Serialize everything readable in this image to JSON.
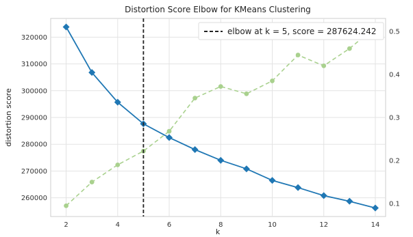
{
  "chart_data": {
    "type": "line",
    "title": "Distortion Score Elbow for KMeans Clustering",
    "xlabel": "k",
    "ylabel": "distortion score",
    "y2label": "",
    "x": [
      2,
      3,
      4,
      5,
      6,
      7,
      8,
      9,
      10,
      11,
      12,
      13,
      14
    ],
    "xlim": [
      1.4,
      14.4
    ],
    "xticks": [
      2,
      4,
      6,
      8,
      10,
      12,
      14
    ],
    "ylim": [
      253000,
      327000
    ],
    "yticks": [
      260000,
      270000,
      280000,
      290000,
      300000,
      310000,
      320000
    ],
    "y2lim": [
      0.07,
      0.53
    ],
    "y2ticks": [
      0.1,
      0.2,
      0.3,
      0.4,
      0.5
    ],
    "y2tick_labels": [
      "0.1",
      "0.2",
      "0.3",
      "0.4",
      "0.5"
    ],
    "grid": true,
    "legend_position": "top-right",
    "series": [
      {
        "axis": "left",
        "style": "solid",
        "marker": "diamond",
        "color": "#1f77b4",
        "values": [
          323800,
          306800,
          295700,
          287624.242,
          282500,
          278000,
          274000,
          270800,
          266500,
          263800,
          260800,
          258700,
          256200
        ]
      },
      {
        "axis": "right",
        "style": "dashed",
        "marker": "circle",
        "color": "#a9d18e",
        "values": [
          0.095,
          0.15,
          0.19,
          0.222,
          0.268,
          0.345,
          0.372,
          0.355,
          0.385,
          0.445,
          0.42,
          0.46,
          0.51
        ]
      }
    ],
    "elbow": {
      "k": 5,
      "label": "elbow at k = 5, score = 287624.242",
      "color": "#222222",
      "style": "dashed"
    }
  }
}
